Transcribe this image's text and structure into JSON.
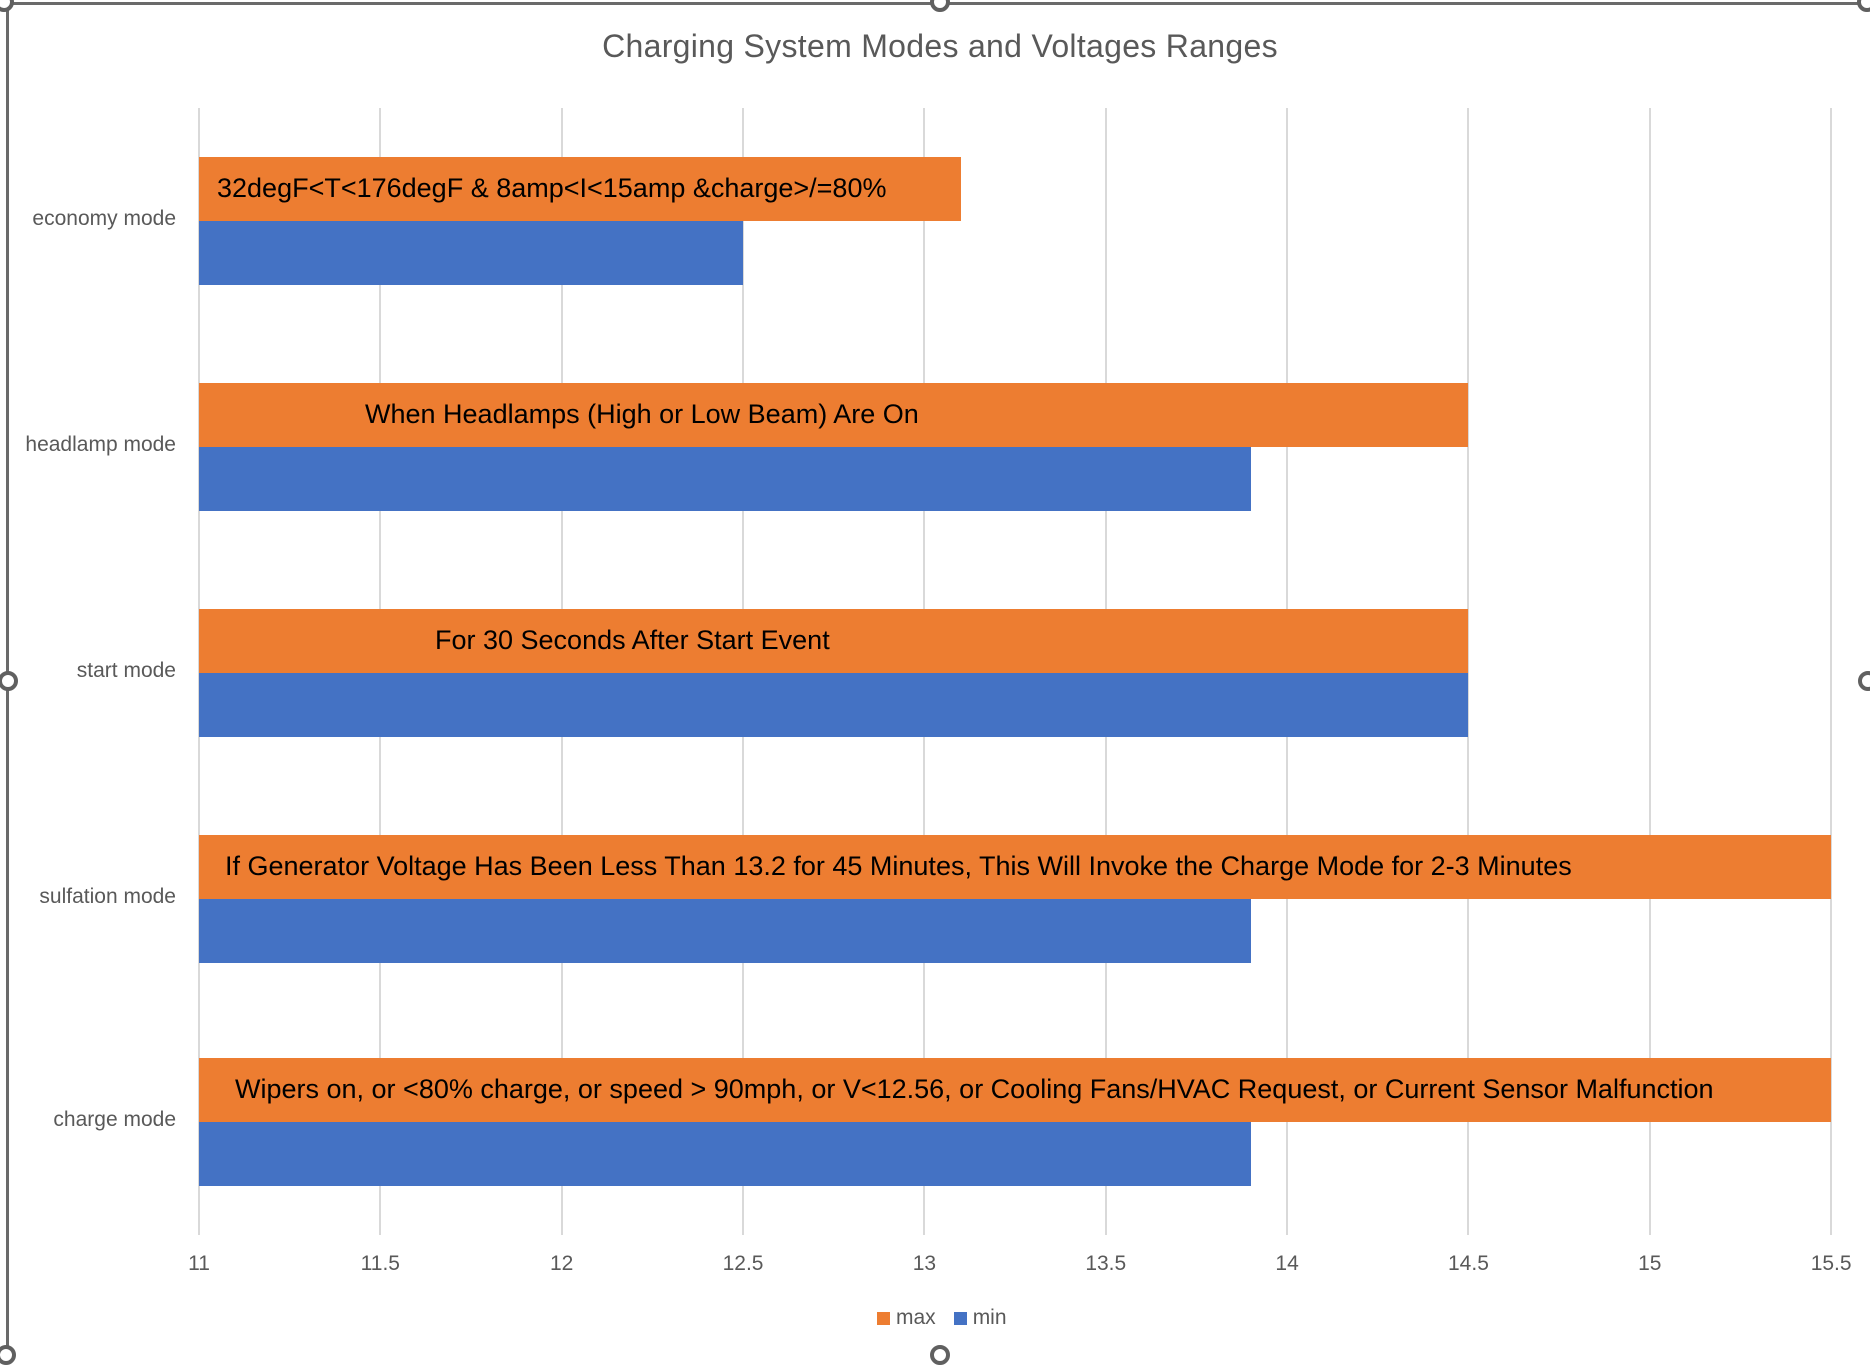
{
  "chart_data": {
    "type": "bar",
    "orientation": "horizontal",
    "title": "Charging System Modes and Voltages Ranges",
    "xlabel": "",
    "ylabel": "",
    "xlim": [
      11,
      15.5
    ],
    "x_ticks": [
      "11",
      "11.5",
      "12",
      "12.5",
      "13",
      "13.5",
      "14",
      "14.5",
      "15",
      "15.5"
    ],
    "grid": "vertical",
    "legend_position": "bottom",
    "categories": [
      "economy mode",
      "headlamp mode",
      "start mode",
      "sulfation mode",
      "charge mode"
    ],
    "series": [
      {
        "name": "max",
        "color": "#ed7d31",
        "values": [
          13.1,
          14.5,
          14.5,
          15.5,
          15.5
        ]
      },
      {
        "name": "min",
        "color": "#4472c4",
        "values": [
          12.5,
          13.9,
          14.5,
          13.9,
          13.9
        ]
      }
    ],
    "annotations": [
      "32degF<T<176degF & 8amp<I<15amp &charge>/=80%",
      "When Headlamps (High or Low Beam) Are On",
      "For 30 Seconds After Start Event",
      "If  Generator Voltage Has Been Less Than 13.2 for 45 Minutes, This Will Invoke the Charge Mode for 2-3 Minutes",
      "Wipers on, or  <80% charge, or speed > 90mph, or V<12.56, or  Cooling Fans/HVAC Request, or Current Sensor Malfunction"
    ]
  },
  "title": "Charging System Modes and Voltages Ranges",
  "axis": {
    "ticks": [
      "11",
      "11.5",
      "12",
      "12.5",
      "13",
      "13.5",
      "14",
      "14.5",
      "15",
      "15.5"
    ]
  },
  "rows": [
    {
      "label": "economy mode",
      "note": "32degF<T<176degF & 8amp<I<15amp &charge>/=80%"
    },
    {
      "label": "headlamp mode",
      "note": "When Headlamps (High or Low Beam) Are On"
    },
    {
      "label": "start mode",
      "note": "For 30 Seconds After Start Event"
    },
    {
      "label": "sulfation mode",
      "note": "If  Generator Voltage Has Been Less Than 13.2 for 45 Minutes, This Will Invoke the Charge Mode for 2-3 Minutes"
    },
    {
      "label": "charge mode",
      "note": "Wipers on, or  <80% charge, or speed > 90mph, or V<12.56, or  Cooling Fans/HVAC Request, or Current Sensor Malfunction"
    }
  ],
  "legend": {
    "max_label": "max",
    "min_label": "min",
    "max_color": "#ed7d31",
    "min_color": "#4472c4"
  }
}
